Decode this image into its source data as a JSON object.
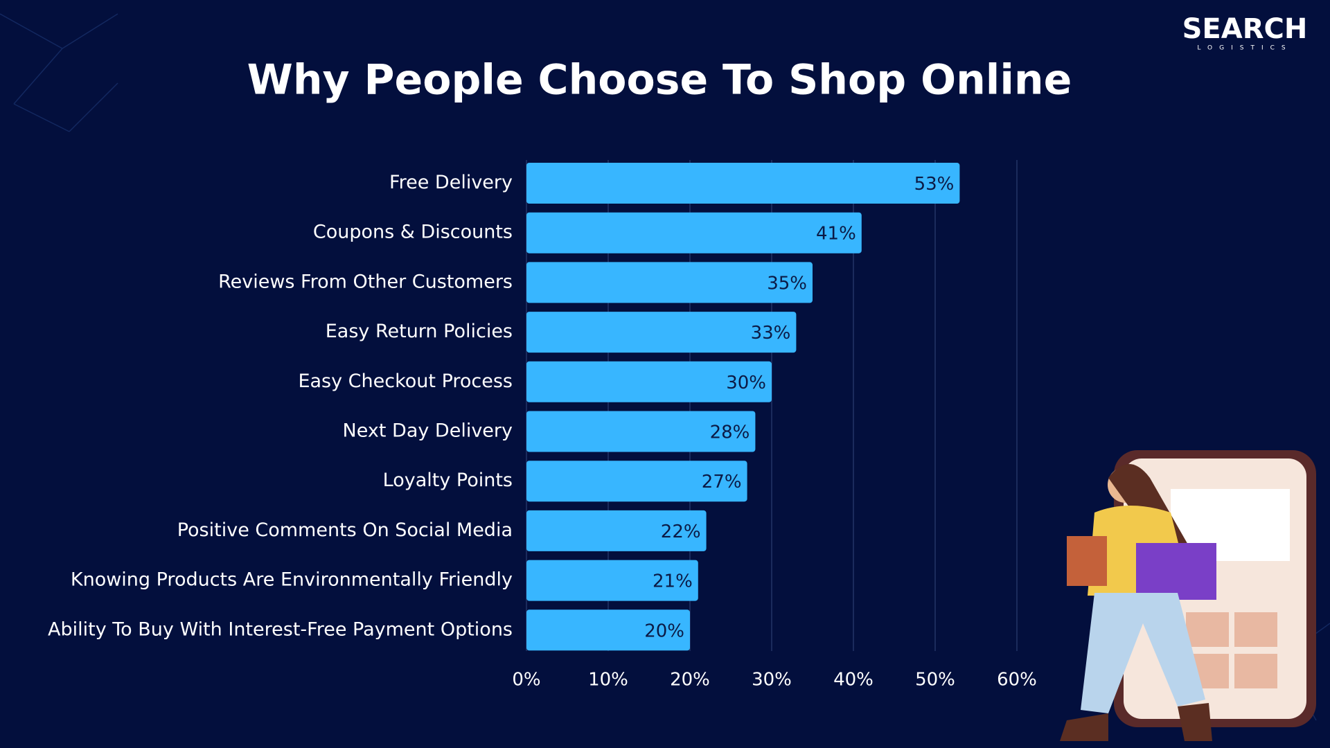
{
  "logo": {
    "name": "SEARCH",
    "tagline": "LOGISTICS"
  },
  "chart_data": {
    "type": "hbar",
    "title": "Why People Choose To Shop Online",
    "categories": [
      "Free Delivery",
      "Coupons & Discounts",
      "Reviews From Other Customers",
      "Easy Return Policies",
      "Easy Checkout Process",
      "Next Day Delivery",
      "Loyalty Points",
      "Positive Comments On Social Media",
      "Knowing Products Are Environmentally Friendly",
      "Ability To Buy With Interest-Free Payment Options"
    ],
    "values": [
      53,
      41,
      35,
      33,
      30,
      28,
      27,
      22,
      21,
      20
    ],
    "value_labels": [
      "53%",
      "41%",
      "35%",
      "33%",
      "30%",
      "28%",
      "27%",
      "22%",
      "21%",
      "20%"
    ],
    "color": "#38b6ff",
    "xlim": [
      0,
      60
    ],
    "xticks": [
      {
        "value": 0,
        "label": "0%"
      },
      {
        "value": 10,
        "label": "10%"
      },
      {
        "value": 20,
        "label": "20%"
      },
      {
        "value": 30,
        "label": "30%"
      },
      {
        "value": 40,
        "label": "40%"
      },
      {
        "value": 50,
        "label": "50%"
      },
      {
        "value": 60,
        "label": "60%"
      }
    ],
    "grid": true
  }
}
